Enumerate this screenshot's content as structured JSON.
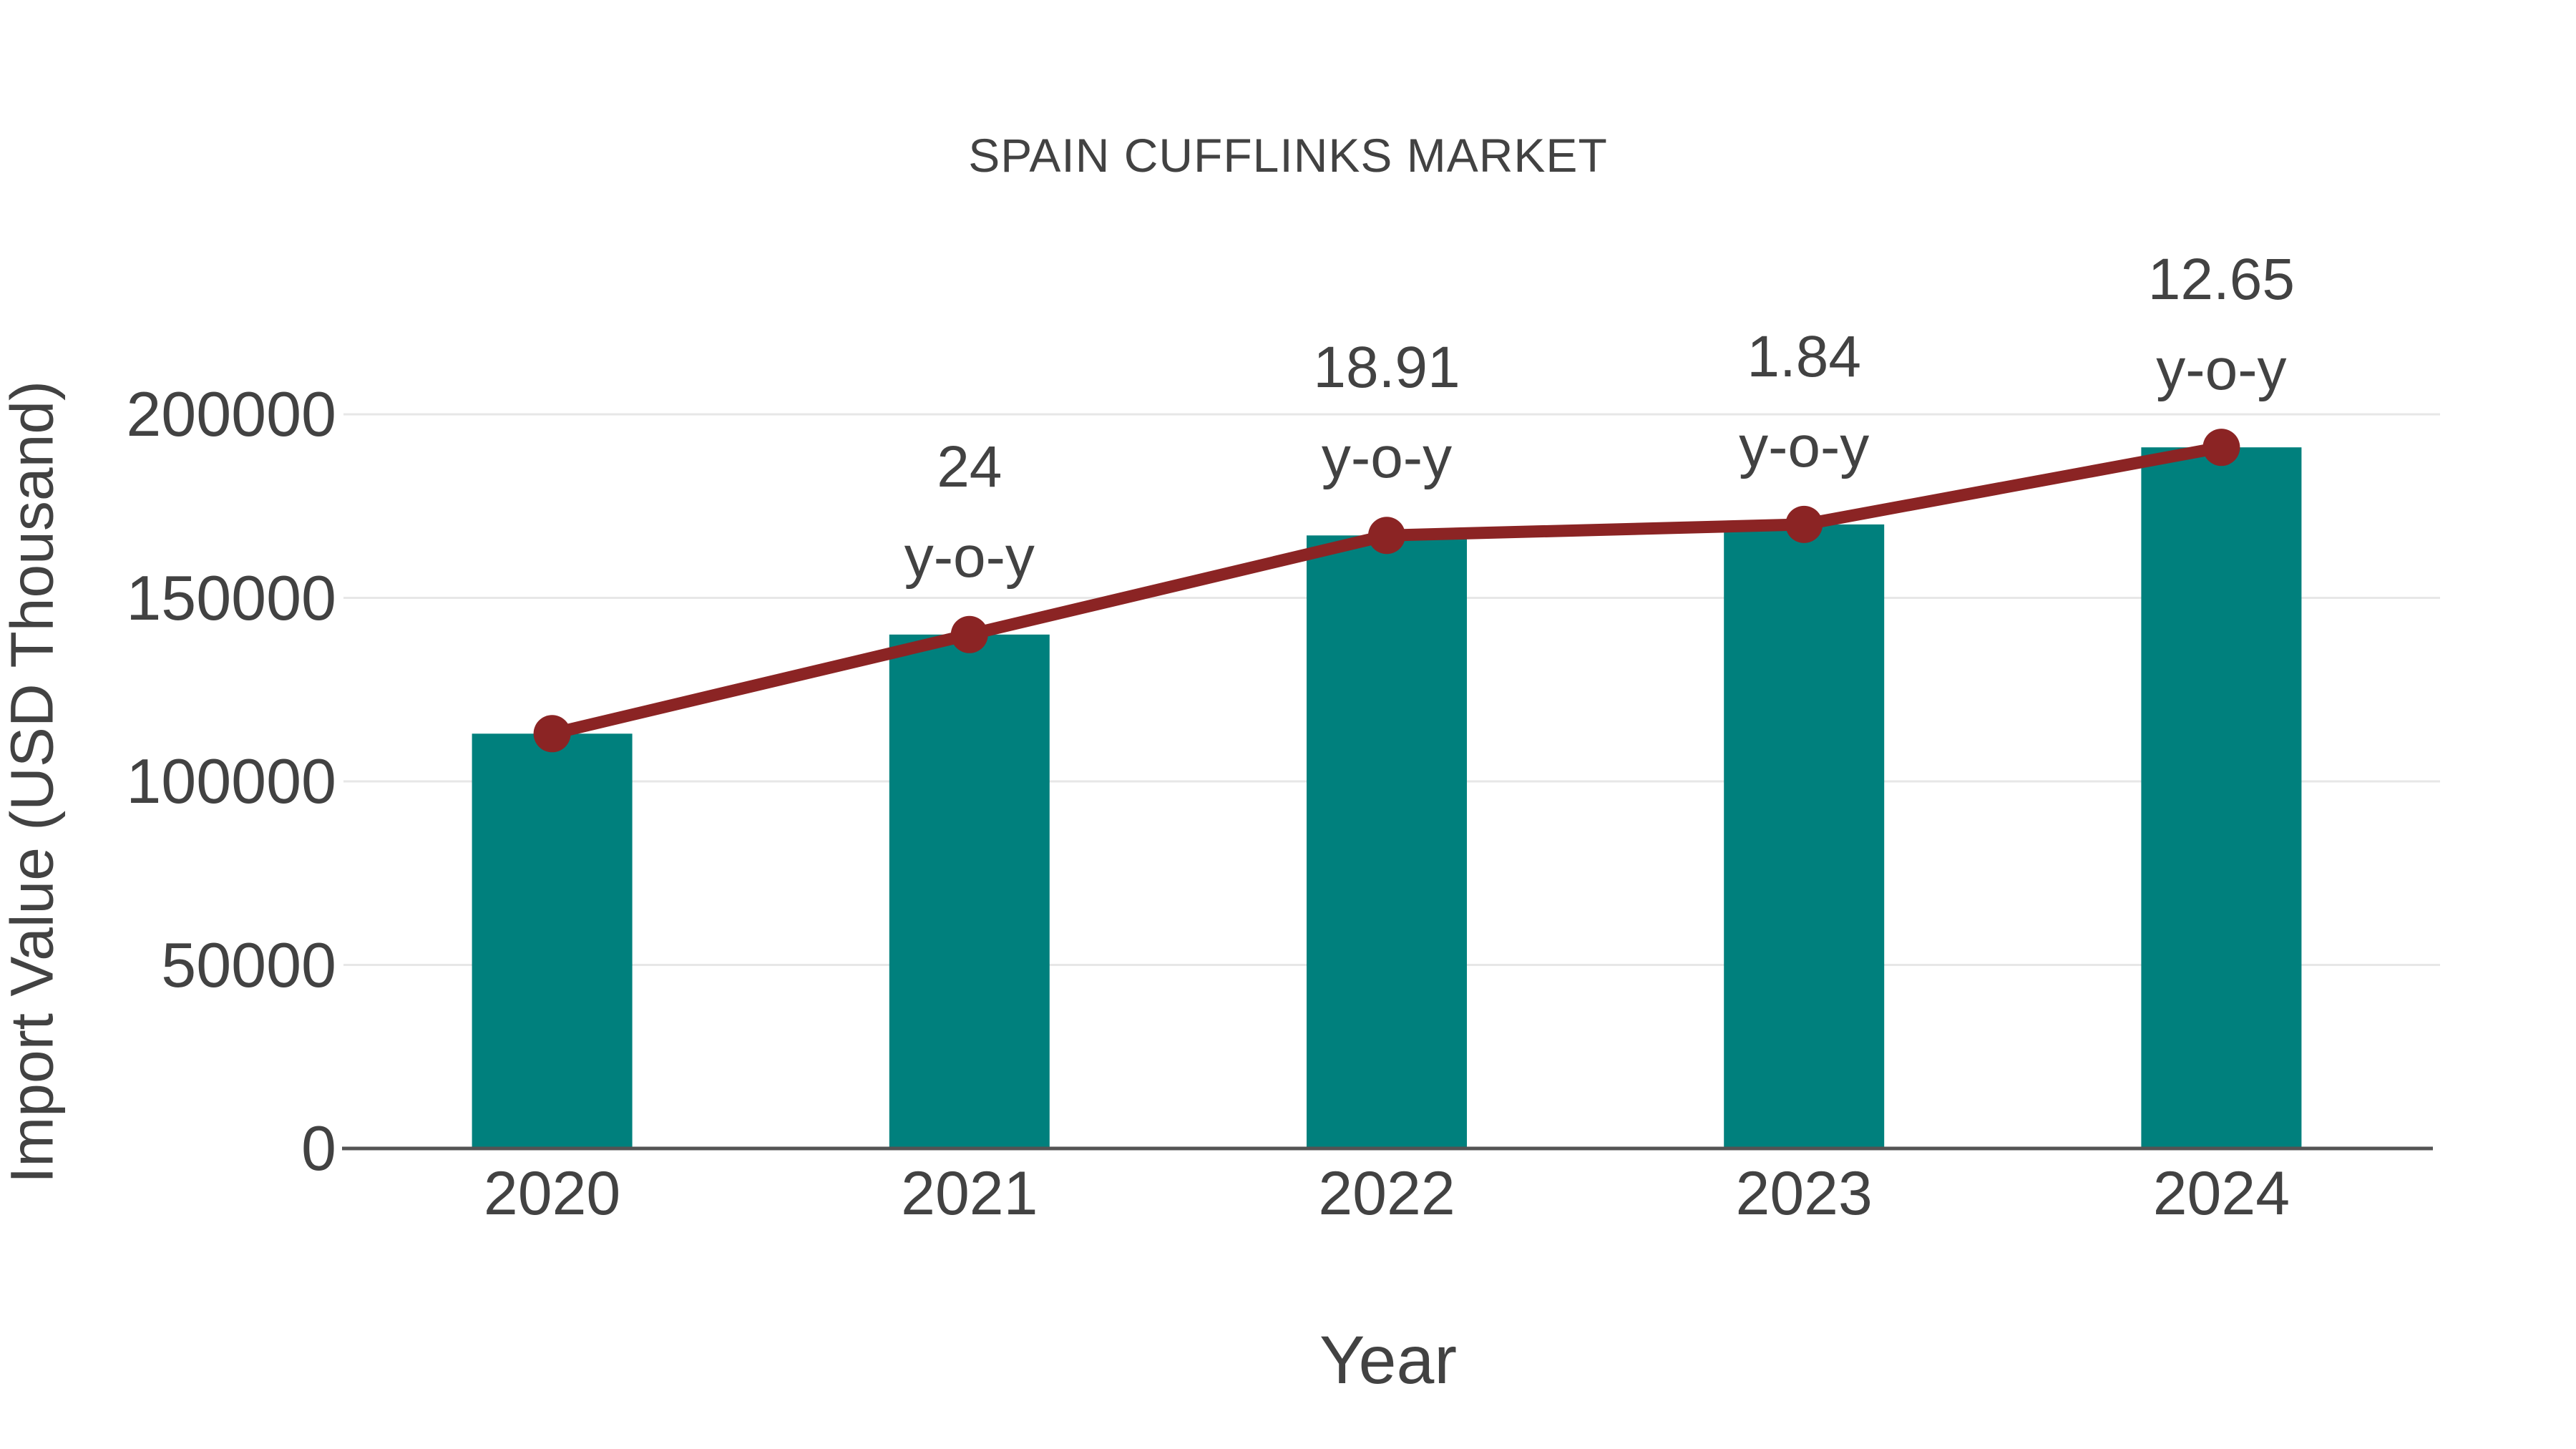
{
  "chart_data": {
    "type": "bar",
    "title": "SPAIN CUFFLINKS MARKET",
    "xlabel": "Year",
    "ylabel": "Import Value (USD Thousand)",
    "categories": [
      "2020",
      "2021",
      "2022",
      "2023",
      "2024"
    ],
    "series": [
      {
        "name": "Import Value (USD Thousand)",
        "type": "bar",
        "color": "#00807D",
        "values": [
          113000,
          140000,
          167000,
          170000,
          191000
        ]
      },
      {
        "name": "y-o-y growth",
        "type": "line",
        "color": "#8B2424",
        "values": [
          113000,
          140000,
          167000,
          170000,
          191000
        ],
        "point_labels": [
          "",
          "24",
          "18.91",
          "1.84",
          "12.65"
        ],
        "point_label_suffix": "y-o-y"
      }
    ],
    "ylim": [
      0,
      200000
    ],
    "yticks": [
      0,
      50000,
      100000,
      150000,
      200000
    ],
    "grid": true,
    "legend_position": "none",
    "colors": {
      "text": "#424242",
      "grid": "#E7E7E7",
      "axis": "#545454",
      "background": "#FFFFFF"
    }
  }
}
